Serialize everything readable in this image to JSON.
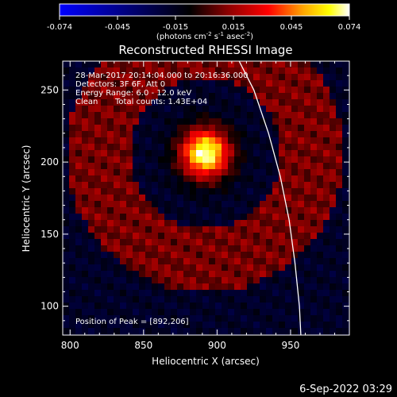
{
  "colorbar": {
    "ticks": [
      "-0.074",
      "-0.045",
      "-0.015",
      "0.015",
      "0.045",
      "0.074"
    ],
    "units_prefix": "(photons cm",
    "units_exp1": "-2",
    "units_mid": " s",
    "units_exp2": "-1",
    "units_suffix": " asec",
    "units_exp3": "-2",
    "units_close": ")",
    "range": [
      -0.074,
      0.074
    ],
    "stops": [
      "#0000ff",
      "#000000",
      "#8b0000",
      "#ff0000",
      "#ffa500",
      "#ffff00",
      "#ffffff"
    ]
  },
  "chart_data": {
    "type": "heatmap",
    "title": "Reconstructed RHESSI Image",
    "xlabel": "Heliocentric X (arcsec)",
    "ylabel": "Heliocentric Y (arcsec)",
    "xlim": [
      795,
      990
    ],
    "ylim": [
      80,
      270
    ],
    "x_ticks": [
      800,
      850,
      900,
      950
    ],
    "y_ticks": [
      100,
      150,
      200,
      250
    ],
    "peak": [
      892,
      206
    ],
    "limb": [
      [
        915,
        270
      ],
      [
        925,
        250
      ],
      [
        935,
        220
      ],
      [
        943,
        190
      ],
      [
        949,
        160
      ],
      [
        953,
        130
      ],
      [
        956,
        100
      ],
      [
        957,
        80
      ]
    ]
  },
  "info": {
    "time_range": "28-Mar-2017 20:14:04.000 to 20:16:36.000",
    "detectors": "Detectors: 3F 6F, Att 0",
    "energy": "Energy Range: 6.0 - 12.0 keV",
    "algorithm": "Clean",
    "counts": "Total counts: 1.43E+04",
    "peak_label": "Position of Peak = [892,206]"
  },
  "footer": {
    "timestamp": "6-Sep-2022 03:29"
  }
}
